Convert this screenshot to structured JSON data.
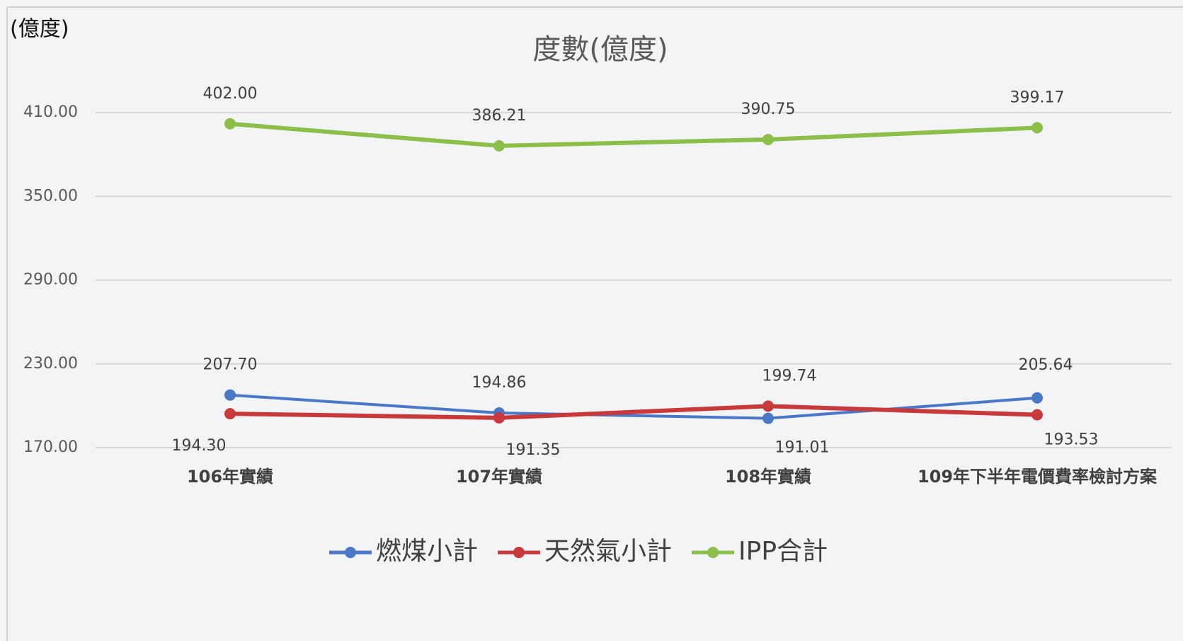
{
  "chart_data": {
    "type": "line",
    "title": "度數(億度)",
    "y_label": "(億度)",
    "categories": [
      "106年實績",
      "107年實績",
      "108年實績",
      "109年下半年電價費率檢討方案"
    ],
    "series": [
      {
        "name": "燃煤小計",
        "color": "#4a78c8",
        "values": [
          207.7,
          194.86,
          191.01,
          205.64
        ],
        "value_labels": [
          "207.70",
          "194.86",
          "191.01",
          "205.64"
        ]
      },
      {
        "name": "天然氣小計",
        "color": "#c8393b",
        "values": [
          194.3,
          191.35,
          199.74,
          193.53
        ],
        "value_labels": [
          "194.30",
          "191.35",
          "199.74",
          "193.53"
        ]
      },
      {
        "name": "IPP合計",
        "color": "#8cbf4a",
        "values": [
          402,
          386.21,
          390.75,
          399.17
        ],
        "value_labels": [
          "402.00",
          "386.21",
          "390.75",
          "399.17"
        ]
      }
    ],
    "ylim": [
      170,
      410
    ],
    "yticks": [
      {
        "value": 170,
        "label": "170.00"
      },
      {
        "value": 230,
        "label": "230.00"
      },
      {
        "value": 290,
        "label": "290.00"
      },
      {
        "value": 350,
        "label": "350.00"
      },
      {
        "value": 410,
        "label": "410.00"
      }
    ],
    "grid": true,
    "legend": "bottom"
  }
}
